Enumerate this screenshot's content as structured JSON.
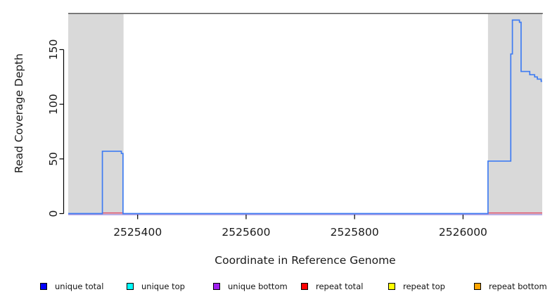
{
  "figure": {
    "xlabel": "Coordinate in Reference Genome",
    "ylabel": "Read Coverage Depth"
  },
  "chart_data": {
    "type": "line",
    "subtype": "step-coverage-plot",
    "title": "",
    "xlabel": "Coordinate in Reference Genome",
    "ylabel": "Read Coverage Depth",
    "xlim": [
      2525272,
      2526146
    ],
    "ylim": [
      0,
      183
    ],
    "x_ticks": [
      2525400,
      2525600,
      2525800,
      2526000
    ],
    "y_ticks": [
      0,
      50,
      100,
      150
    ],
    "grid": false,
    "legend_position": "bottom",
    "shaded_regions": [
      {
        "name": "repeat-region-left",
        "x0": 2525272,
        "x1": 2525374
      },
      {
        "name": "repeat-region-right",
        "x0": 2526046,
        "x1": 2526146
      }
    ],
    "series": [
      {
        "name": "unique total",
        "draw_color": "#3f7cf2",
        "points": [
          [
            2525272,
            0
          ],
          [
            2525335,
            0
          ],
          [
            2525335,
            57
          ],
          [
            2525370,
            57
          ],
          [
            2525370,
            55
          ],
          [
            2525373,
            55
          ],
          [
            2525373,
            0
          ],
          [
            2526046,
            0
          ],
          [
            2526046,
            48
          ],
          [
            2526088,
            48
          ],
          [
            2526088,
            146
          ],
          [
            2526091,
            146
          ],
          [
            2526091,
            177
          ],
          [
            2526104,
            177
          ],
          [
            2526104,
            175
          ],
          [
            2526107,
            175
          ],
          [
            2526107,
            130
          ],
          [
            2526123,
            130
          ],
          [
            2526123,
            127
          ],
          [
            2526132,
            127
          ],
          [
            2526132,
            125
          ],
          [
            2526137,
            125
          ],
          [
            2526137,
            123
          ],
          [
            2526144,
            123
          ],
          [
            2526144,
            121
          ],
          [
            2526146,
            121
          ]
        ]
      },
      {
        "name": "repeat total",
        "draw_color": "#e0506e",
        "segments": [
          {
            "x0": 2525335,
            "x1": 2525374,
            "depth": 0
          },
          {
            "x0": 2526046,
            "x1": 2526146,
            "depth": 0
          }
        ]
      },
      {
        "name": "unique bottom",
        "draw_color": "#a893e0",
        "segments": [
          {
            "x0": 2525272,
            "x1": 2526146,
            "depth": 0
          }
        ]
      }
    ],
    "legend": [
      {
        "label": "unique total",
        "color": "#0000ff"
      },
      {
        "label": "unique top",
        "color": "#00ffff"
      },
      {
        "label": "unique bottom",
        "color": "#a020f0"
      },
      {
        "label": "repeat total",
        "color": "#ff0000"
      },
      {
        "label": "repeat top",
        "color": "#ffff00"
      },
      {
        "label": "repeat bottom",
        "color": "#ffa500"
      }
    ]
  },
  "colors": {
    "shaded_region": "#d9d9d9",
    "plot_top_border": "#555555",
    "axis": "#000000",
    "tick_label": "#1a1a1a",
    "background": "#ffffff"
  }
}
